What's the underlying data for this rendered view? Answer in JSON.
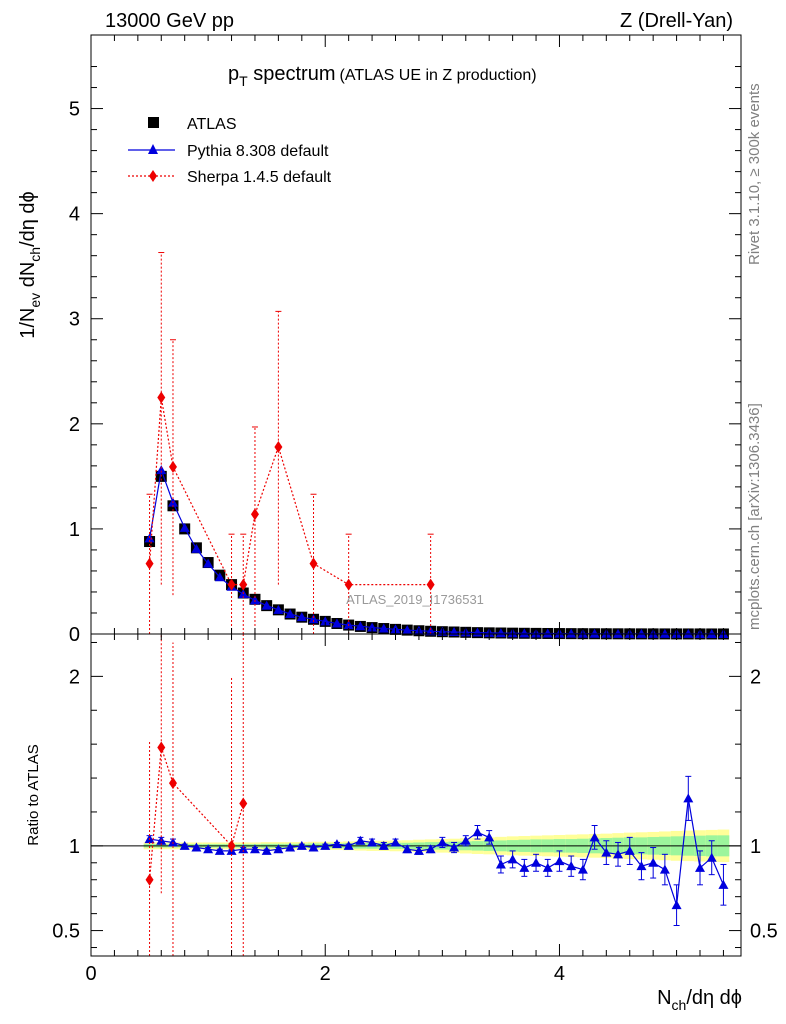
{
  "header": {
    "energy_label": "13000 GeV pp",
    "process_label": "Z (Drell-Yan)"
  },
  "side": {
    "rivet": "Rivet 3.1.10, ≥ 300k events",
    "source": "mcplots.cern.ch [arXiv:1306.3436]"
  },
  "colors": {
    "atlas": "#000000",
    "pythia": "#0000dd",
    "sherpa": "#ee0000",
    "band_inner": "#9cf59c",
    "band_outer": "#ffff99"
  },
  "chart_data": {
    "type": "scatter",
    "title_main": "p",
    "title_sub": "T",
    "title_rest": " spectrum",
    "title_note": "(ATLAS UE in Z production)",
    "watermark": "ATLAS_2019_I1736531",
    "xlabel": "N",
    "xlabel_sub": "ch",
    "xlabel_rest": "/dη dϕ",
    "ylabel_top": "1/N",
    "ylabel_top_sub1": "ev",
    "ylabel_top_mid": " dN",
    "ylabel_top_mid2": "/dN",
    "ylabel_top_sub2": "ch",
    "ylabel_top_rest": "/dη dϕ",
    "ylabel_ratio": "Ratio to ATLAS",
    "xlim": [
      0,
      5.55
    ],
    "ylim_top": [
      0,
      5.7
    ],
    "ylim_ratio": [
      0.35,
      2.25
    ],
    "x_ticks": [
      "0",
      "2",
      "4"
    ],
    "x_tick_values": [
      0,
      2,
      4
    ],
    "y_ticks_top": [
      "0",
      "1",
      "2",
      "3",
      "4",
      "5"
    ],
    "y_tick_values_top": [
      0,
      1,
      2,
      3,
      4,
      5
    ],
    "y_ticks_ratio": [
      "0.5",
      "1",
      "2"
    ],
    "y_tick_values_ratio": [
      0.5,
      1,
      2
    ],
    "legend": [
      "ATLAS",
      "Pythia 8.308 default",
      "Sherpa 1.4.5 default"
    ],
    "x": [
      0.5,
      0.6,
      0.7,
      0.8,
      0.9,
      1.0,
      1.1,
      1.2,
      1.3,
      1.4,
      1.5,
      1.6,
      1.7,
      1.8,
      1.9,
      2.0,
      2.1,
      2.2,
      2.3,
      2.4,
      2.5,
      2.6,
      2.7,
      2.8,
      2.9,
      3.0,
      3.1,
      3.2,
      3.3,
      3.4,
      3.5,
      3.6,
      3.7,
      3.8,
      3.9,
      4.0,
      4.1,
      4.2,
      4.3,
      4.4,
      4.5,
      4.6,
      4.7,
      4.8,
      4.9,
      5.0,
      5.1,
      5.2,
      5.3,
      5.4
    ],
    "series": [
      {
        "name": "ATLAS",
        "values": [
          0.88,
          1.5,
          1.22,
          1.0,
          0.82,
          0.68,
          0.56,
          0.47,
          0.39,
          0.33,
          0.27,
          0.23,
          0.19,
          0.16,
          0.14,
          0.12,
          0.1,
          0.085,
          0.072,
          0.061,
          0.052,
          0.044,
          0.037,
          0.031,
          0.026,
          0.022,
          0.019,
          0.016,
          0.013,
          0.011,
          0.0095,
          0.008,
          0.0068,
          0.0058,
          0.0049,
          0.0042,
          0.0035,
          0.003,
          0.0025,
          0.0021,
          0.0018,
          0.0015,
          0.0013,
          0.0011,
          0.0009,
          0.0008,
          0.0007,
          0.0006,
          0.0005,
          0.0004
        ]
      },
      {
        "name": "Pythia 8.308 default",
        "values": [
          0.91,
          1.56,
          1.25,
          1.01,
          0.81,
          0.67,
          0.54,
          0.45,
          0.38,
          0.32,
          0.27,
          0.23,
          0.19,
          0.16,
          0.14,
          0.12,
          0.1,
          0.085,
          0.074,
          0.062,
          0.052,
          0.045,
          0.037,
          0.031,
          0.026,
          0.022,
          0.019,
          0.016,
          0.014,
          0.011,
          0.0085,
          0.0074,
          0.0059,
          0.0052,
          0.0043,
          0.0038,
          0.0031,
          0.0026,
          0.0026,
          0.0019,
          0.0016,
          0.0014,
          0.0012,
          0.001,
          0.0008,
          0.0006,
          0.0009,
          0.0005,
          0.0005,
          0.0003
        ],
        "ratio": [
          1.04,
          1.03,
          1.02,
          1.0,
          0.99,
          0.98,
          0.97,
          0.97,
          0.98,
          0.98,
          0.97,
          0.98,
          0.99,
          1.0,
          0.99,
          1.0,
          1.01,
          1.0,
          1.03,
          1.02,
          1.0,
          1.02,
          0.98,
          0.97,
          0.98,
          1.02,
          0.99,
          1.03,
          1.08,
          1.05,
          0.89,
          0.92,
          0.87,
          0.9,
          0.87,
          0.91,
          0.88,
          0.86,
          1.05,
          0.96,
          0.95,
          0.97,
          0.88,
          0.9,
          0.86,
          0.65,
          1.28,
          0.87,
          0.93,
          0.77
        ],
        "ratio_err": [
          0.02,
          0.02,
          0.02,
          0.01,
          0.01,
          0.01,
          0.01,
          0.01,
          0.01,
          0.01,
          0.01,
          0.01,
          0.01,
          0.01,
          0.01,
          0.01,
          0.01,
          0.01,
          0.02,
          0.02,
          0.02,
          0.02,
          0.02,
          0.02,
          0.02,
          0.03,
          0.03,
          0.03,
          0.04,
          0.04,
          0.05,
          0.05,
          0.05,
          0.05,
          0.05,
          0.06,
          0.06,
          0.06,
          0.07,
          0.07,
          0.07,
          0.08,
          0.08,
          0.09,
          0.09,
          0.12,
          0.13,
          0.1,
          0.1,
          0.12
        ]
      },
      {
        "name": "Sherpa 1.4.5 default",
        "x": [
          0.5,
          0.6,
          0.7,
          1.2,
          1.3,
          1.4,
          1.6,
          1.9,
          2.2,
          2.9
        ],
        "values": [
          0.67,
          2.25,
          1.59,
          0.47,
          0.47,
          1.14,
          1.78,
          0.67,
          0.47,
          0.47
        ],
        "err_up": [
          1.33,
          3.63,
          2.8,
          0.95,
          0.95,
          1.97,
          3.07,
          1.33,
          0.95,
          0.95
        ],
        "err_dn": [
          0.0,
          0.47,
          0.37,
          0.0,
          0.0,
          0.0,
          0.47,
          0.0,
          0.0,
          0.0
        ],
        "ratio": [
          0.8,
          1.58,
          1.37,
          1.0,
          1.25
        ],
        "ratio_x": [
          0.5,
          0.6,
          0.7,
          1.2,
          1.3
        ],
        "ratio_up": [
          1.62,
          2.5,
          2.2,
          2.0,
          2.5
        ],
        "ratio_dn": [
          0.3,
          0.72,
          0.3,
          0.3,
          0.3
        ]
      }
    ],
    "band_inner_halfwidth": [
      0.01,
      0.01,
      0.01,
      0.01,
      0.01,
      0.01,
      0.01,
      0.01,
      0.01,
      0.01,
      0.012,
      0.012,
      0.012,
      0.012,
      0.014,
      0.014,
      0.014,
      0.015,
      0.016,
      0.017,
      0.017,
      0.018,
      0.018,
      0.02,
      0.022,
      0.022,
      0.025,
      0.026,
      0.028,
      0.03,
      0.032,
      0.034,
      0.036,
      0.038,
      0.038,
      0.04,
      0.04,
      0.042,
      0.044,
      0.046,
      0.048,
      0.05,
      0.05,
      0.052,
      0.054,
      0.056,
      0.058,
      0.06,
      0.062,
      0.062
    ],
    "band_outer_halfwidth": [
      0.02,
      0.02,
      0.02,
      0.02,
      0.02,
      0.02,
      0.02,
      0.02,
      0.02,
      0.02,
      0.022,
      0.022,
      0.022,
      0.022,
      0.024,
      0.024,
      0.024,
      0.026,
      0.028,
      0.03,
      0.03,
      0.032,
      0.033,
      0.036,
      0.038,
      0.04,
      0.042,
      0.045,
      0.048,
      0.05,
      0.053,
      0.056,
      0.058,
      0.06,
      0.062,
      0.064,
      0.066,
      0.068,
      0.07,
      0.072,
      0.075,
      0.078,
      0.08,
      0.082,
      0.085,
      0.088,
      0.09,
      0.092,
      0.094,
      0.096
    ]
  }
}
